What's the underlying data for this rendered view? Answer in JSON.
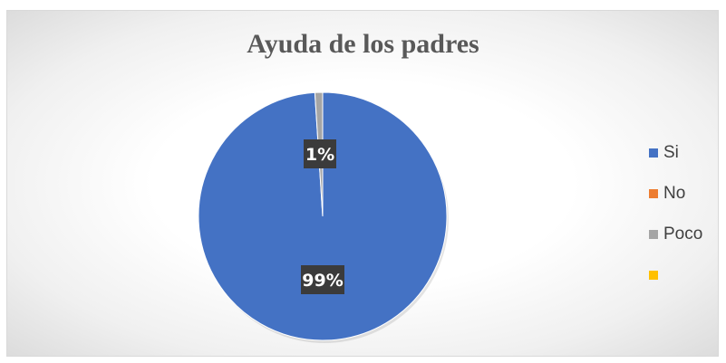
{
  "chart_data": {
    "type": "pie",
    "title": "Ayuda de los padres",
    "slices": [
      {
        "name": "Si",
        "value": 99,
        "label": "99%",
        "color": "#4472C4"
      },
      {
        "name": "No",
        "value": 0,
        "label": "",
        "color": "#ED7D31"
      },
      {
        "name": "Poco",
        "value": 1,
        "label": "1%",
        "color": "#A5A5A5"
      },
      {
        "name": "",
        "value": 0,
        "label": "",
        "color": "#FFC000"
      }
    ],
    "legend_position": "right",
    "grid": false
  }
}
